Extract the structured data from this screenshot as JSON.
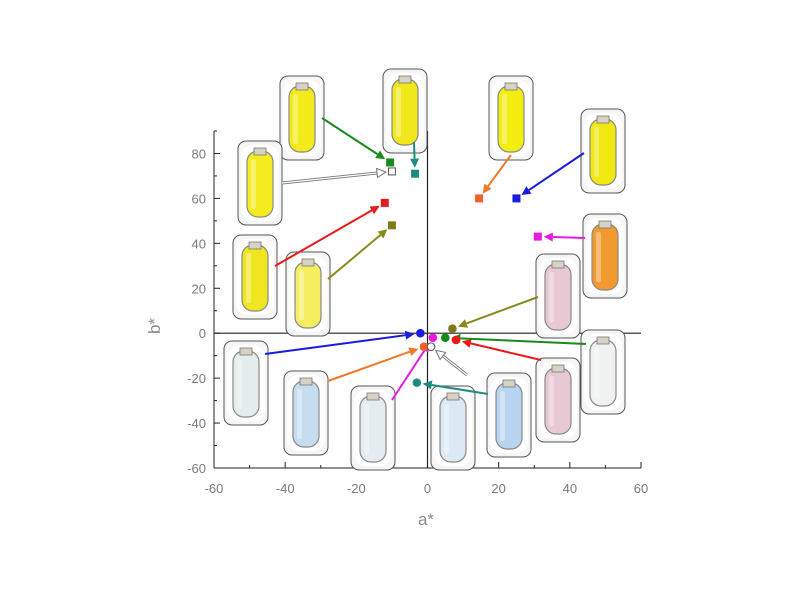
{
  "chart_data": {
    "type": "scatter",
    "title": "",
    "xlabel": "a*",
    "ylabel": "b*",
    "xlim": [
      -60,
      60
    ],
    "ylim": [
      -60,
      90
    ],
    "x_ticks": [
      -60,
      -40,
      -20,
      0,
      20,
      40,
      60
    ],
    "y_ticks": [
      -60,
      -40,
      -20,
      0,
      20,
      40,
      60,
      80
    ],
    "axes_cross_at_origin": true,
    "grid": false,
    "legend": "none",
    "points": [
      {
        "x": -10.5,
        "y": 76,
        "color": "#1a8a1a",
        "marker": "square",
        "photo_color": "#f2ea1a",
        "arrow_color": "#1a8a1a"
      },
      {
        "x": -3.5,
        "y": 71,
        "color": "#1f8a80",
        "marker": "square",
        "photo_color": "#f0e81a",
        "arrow_color": "#1f8a80"
      },
      {
        "x": -10,
        "y": 72,
        "color": "#ffffff",
        "marker": "square-open",
        "photo_color": "#f4ec20",
        "arrow_color": "#666666"
      },
      {
        "x": 14.5,
        "y": 60,
        "color": "#f06030",
        "marker": "square",
        "photo_color": "#f2ee10",
        "arrow_color": "#f07a28"
      },
      {
        "x": 25,
        "y": 60,
        "color": "#1a1ae0",
        "marker": "square",
        "photo_color": "#f0e810",
        "arrow_color": "#1a1ae0"
      },
      {
        "x": -12,
        "y": 58,
        "color": "#e81a1a",
        "marker": "square",
        "photo_color": "#f0e620",
        "arrow_color": "#e81a1a"
      },
      {
        "x": -10,
        "y": 48,
        "color": "#7e7a1a",
        "marker": "square",
        "photo_color": "#f4ee60",
        "arrow_color": "#8a8a1a"
      },
      {
        "x": 31,
        "y": 43,
        "color": "#e81ae0",
        "marker": "square",
        "photo_color": "#f29a30",
        "arrow_color": "#e81ae0"
      },
      {
        "x": 7,
        "y": 2,
        "color": "#7e7a1a",
        "marker": "circle",
        "photo_color": "#e8c8d4",
        "arrow_color": "#8a8a1a"
      },
      {
        "x": 5,
        "y": -2,
        "color": "#1a8a1a",
        "marker": "circle",
        "photo_color": "#f0f2f2",
        "arrow_color": "#1a8a1a"
      },
      {
        "x": 8,
        "y": -3,
        "color": "#e81a1a",
        "marker": "circle",
        "photo_color": "#e8c8d4",
        "arrow_color": "#e81a1a"
      },
      {
        "x": -2,
        "y": 0,
        "color": "#1a1ae0",
        "marker": "circle",
        "photo_color": "#e4ecec",
        "arrow_color": "#1a1ae0"
      },
      {
        "x": -1,
        "y": -6,
        "color": "#f06030",
        "marker": "circle",
        "photo_color": "#c8dcf0",
        "arrow_color": "#f07a28"
      },
      {
        "x": 1.5,
        "y": -2,
        "color": "#e81ae0",
        "marker": "circle",
        "photo_color": "#e4ecf0",
        "arrow_color": "#e81ae0"
      },
      {
        "x": 1,
        "y": -6,
        "color": "#ffffff",
        "marker": "circle-open",
        "photo_color": "#dce8f4",
        "arrow_color": "#666666"
      },
      {
        "x": -3,
        "y": -22,
        "color": "#1f8a80",
        "marker": "circle",
        "photo_color": "#b8d4f0",
        "arrow_color": "#1f8a80"
      }
    ]
  }
}
